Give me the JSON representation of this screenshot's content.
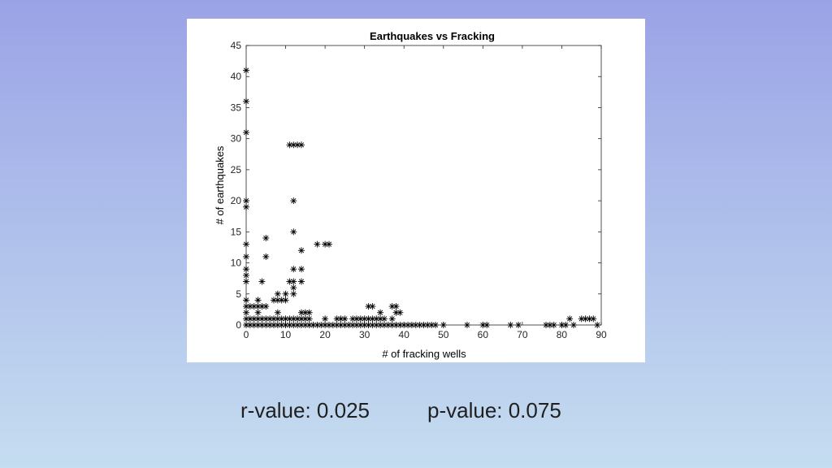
{
  "slide": {
    "background_top": "#9aa3e6",
    "background_bottom": "#c5ddf0",
    "r_value_text": "r-value: 0.025",
    "p_value_text": "p-value: 0.075"
  },
  "chart_data": {
    "type": "scatter",
    "title": "Earthquakes vs Fracking",
    "xlabel": "# of fracking wells",
    "ylabel": "# of earthquakes",
    "xlim": [
      0,
      90
    ],
    "ylim": [
      0,
      45
    ],
    "xticks": [
      0,
      10,
      20,
      30,
      40,
      50,
      60,
      70,
      80,
      90
    ],
    "yticks": [
      0,
      5,
      10,
      15,
      20,
      25,
      30,
      35,
      40,
      45
    ],
    "marker": "*",
    "grid": false,
    "box": true,
    "points": [
      [
        0,
        41
      ],
      [
        0,
        36
      ],
      [
        0,
        31
      ],
      [
        0,
        20
      ],
      [
        0,
        19
      ],
      [
        0,
        13
      ],
      [
        0,
        11
      ],
      [
        0,
        9
      ],
      [
        0,
        8
      ],
      [
        0,
        7
      ],
      [
        0,
        4
      ],
      [
        0,
        3
      ],
      [
        0,
        2
      ],
      [
        0,
        1
      ],
      [
        0,
        0
      ],
      [
        1,
        3
      ],
      [
        1,
        1
      ],
      [
        1,
        0
      ],
      [
        2,
        3
      ],
      [
        2,
        1
      ],
      [
        2,
        0
      ],
      [
        3,
        4
      ],
      [
        3,
        3
      ],
      [
        3,
        2
      ],
      [
        3,
        1
      ],
      [
        3,
        0
      ],
      [
        4,
        7
      ],
      [
        4,
        3
      ],
      [
        4,
        1
      ],
      [
        4,
        0
      ],
      [
        5,
        14
      ],
      [
        5,
        11
      ],
      [
        5,
        3
      ],
      [
        5,
        1
      ],
      [
        5,
        0
      ],
      [
        6,
        1
      ],
      [
        6,
        0
      ],
      [
        7,
        4
      ],
      [
        7,
        1
      ],
      [
        7,
        0
      ],
      [
        8,
        5
      ],
      [
        8,
        4
      ],
      [
        8,
        2
      ],
      [
        8,
        1
      ],
      [
        8,
        0
      ],
      [
        9,
        4
      ],
      [
        9,
        1
      ],
      [
        9,
        0
      ],
      [
        10,
        5
      ],
      [
        10,
        4
      ],
      [
        10,
        1
      ],
      [
        10,
        0
      ],
      [
        11,
        29
      ],
      [
        11,
        7
      ],
      [
        11,
        1
      ],
      [
        11,
        0
      ],
      [
        12,
        29
      ],
      [
        12,
        20
      ],
      [
        12,
        15
      ],
      [
        12,
        9
      ],
      [
        12,
        7
      ],
      [
        12,
        6
      ],
      [
        12,
        5
      ],
      [
        12,
        1
      ],
      [
        12,
        0
      ],
      [
        13,
        29
      ],
      [
        13,
        1
      ],
      [
        13,
        0
      ],
      [
        14,
        29
      ],
      [
        14,
        12
      ],
      [
        14,
        9
      ],
      [
        14,
        7
      ],
      [
        14,
        2
      ],
      [
        14,
        1
      ],
      [
        14,
        0
      ],
      [
        15,
        2
      ],
      [
        15,
        1
      ],
      [
        15,
        0
      ],
      [
        16,
        2
      ],
      [
        16,
        1
      ],
      [
        16,
        0
      ],
      [
        17,
        0
      ],
      [
        18,
        13
      ],
      [
        18,
        0
      ],
      [
        19,
        0
      ],
      [
        20,
        13
      ],
      [
        20,
        1
      ],
      [
        20,
        0
      ],
      [
        21,
        13
      ],
      [
        21,
        0
      ],
      [
        22,
        0
      ],
      [
        23,
        1
      ],
      [
        23,
        0
      ],
      [
        24,
        1
      ],
      [
        24,
        0
      ],
      [
        25,
        1
      ],
      [
        25,
        0
      ],
      [
        26,
        0
      ],
      [
        27,
        1
      ],
      [
        27,
        0
      ],
      [
        28,
        1
      ],
      [
        28,
        0
      ],
      [
        29,
        1
      ],
      [
        29,
        0
      ],
      [
        30,
        1
      ],
      [
        30,
        0
      ],
      [
        31,
        3
      ],
      [
        31,
        1
      ],
      [
        31,
        0
      ],
      [
        32,
        3
      ],
      [
        32,
        1
      ],
      [
        32,
        0
      ],
      [
        33,
        1
      ],
      [
        33,
        0
      ],
      [
        34,
        2
      ],
      [
        34,
        1
      ],
      [
        34,
        0
      ],
      [
        35,
        1
      ],
      [
        35,
        0
      ],
      [
        36,
        0
      ],
      [
        37,
        3
      ],
      [
        37,
        1
      ],
      [
        37,
        0
      ],
      [
        38,
        3
      ],
      [
        38,
        2
      ],
      [
        38,
        0
      ],
      [
        39,
        2
      ],
      [
        39,
        0
      ],
      [
        40,
        0
      ],
      [
        41,
        0
      ],
      [
        42,
        0
      ],
      [
        43,
        0
      ],
      [
        44,
        0
      ],
      [
        45,
        0
      ],
      [
        46,
        0
      ],
      [
        47,
        0
      ],
      [
        48,
        0
      ],
      [
        50,
        0
      ],
      [
        56,
        0
      ],
      [
        60,
        0
      ],
      [
        61,
        0
      ],
      [
        67,
        0
      ],
      [
        69,
        0
      ],
      [
        76,
        0
      ],
      [
        77,
        0
      ],
      [
        78,
        0
      ],
      [
        80,
        0
      ],
      [
        81,
        0
      ],
      [
        82,
        1
      ],
      [
        83,
        0
      ],
      [
        85,
        1
      ],
      [
        86,
        1
      ],
      [
        87,
        1
      ],
      [
        88,
        1
      ],
      [
        89,
        0
      ]
    ]
  }
}
